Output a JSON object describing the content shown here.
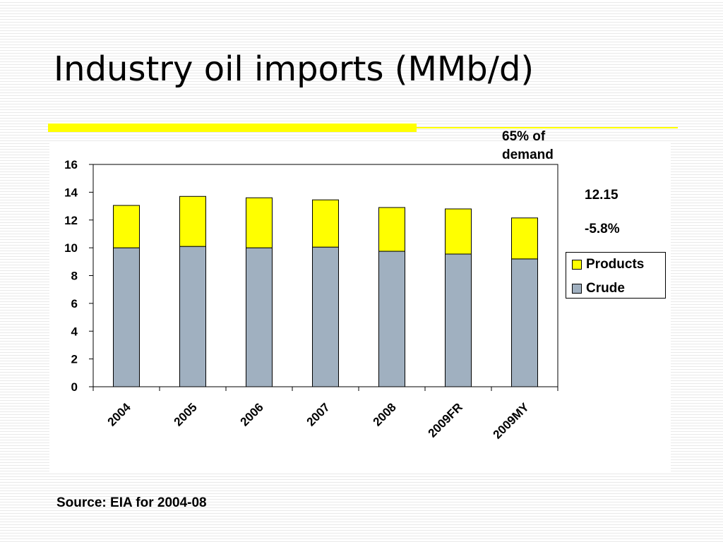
{
  "slide": {
    "title": "Industry oil imports (MMb/d)",
    "source": "Source: EIA for 2004-08",
    "accent_color": "#ffff00"
  },
  "annotations": {
    "demand_line1": "65% of",
    "demand_line2": "demand",
    "total_2009MY": "12.15",
    "change": "-5.8%"
  },
  "chart_data": {
    "type": "bar",
    "stacked": true,
    "categories": [
      "2004",
      "2005",
      "2006",
      "2007",
      "2008",
      "2009FR",
      "2009MY"
    ],
    "series": [
      {
        "name": "Crude",
        "values": [
          10.0,
          10.1,
          10.0,
          10.05,
          9.75,
          9.55,
          9.2
        ],
        "color": "#a0b0c0"
      },
      {
        "name": "Products",
        "values": [
          3.05,
          3.6,
          3.6,
          3.4,
          3.15,
          3.25,
          2.95
        ],
        "color": "#ffff00"
      }
    ],
    "ylim": [
      0,
      16
    ],
    "yticks": [
      "0",
      "2",
      "4",
      "6",
      "8",
      "10",
      "12",
      "14",
      "16"
    ],
    "xlabel": "",
    "ylabel": "",
    "grid": false,
    "legend_entries": [
      "Products",
      "Crude"
    ],
    "legend_position": "right"
  }
}
